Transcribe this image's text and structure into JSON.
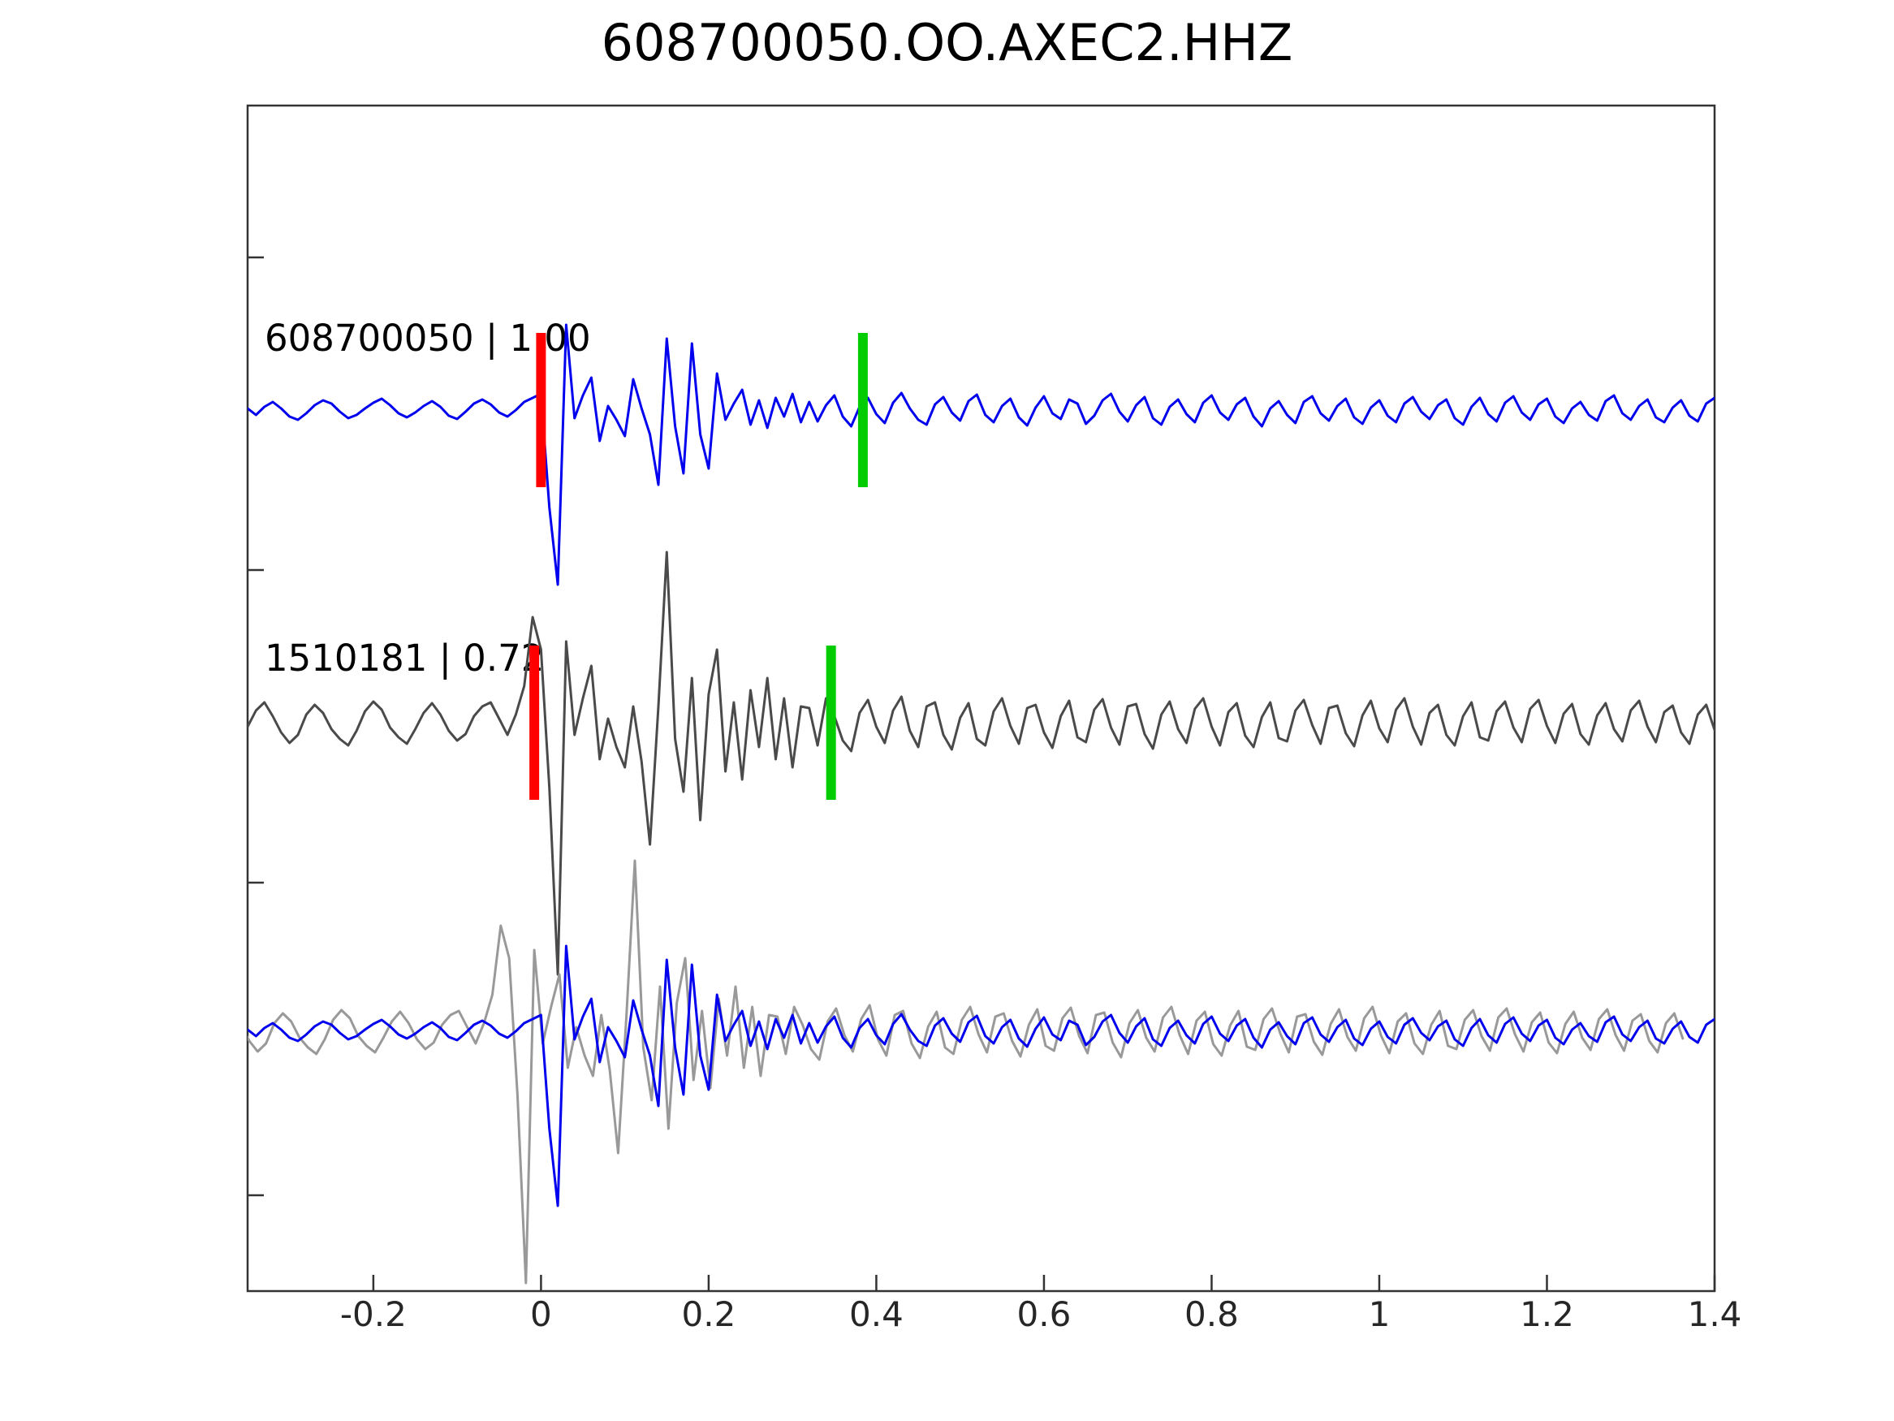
{
  "figure": {
    "title": "608700050.OO.AXEC2.HHZ",
    "background_color": "#ffffff",
    "spine_color": "#333333",
    "text_color": "#262626"
  },
  "chart_data": {
    "type": "line",
    "title": "608700050.OO.AXEC2.HHZ",
    "xlabel": "",
    "ylabel": "",
    "xlim": [
      -0.35,
      1.4
    ],
    "x_ticks": [
      -0.2,
      0,
      0.2,
      0.4,
      0.6,
      0.8,
      1,
      1.2,
      1.4
    ],
    "x_tick_labels": [
      "-0.2",
      "0",
      "0.2",
      "0.4",
      "0.6",
      "0.8",
      "1",
      "1.2",
      "1.4"
    ],
    "grid": false,
    "legend_position": "none",
    "x_start": -0.35,
    "dx": 0.01,
    "amplitude_units": "arbitrary normalized amplitude (source-pixel deviation)",
    "colors": {
      "pick": "#ff0000",
      "window": "#00cc00"
    },
    "traces": [
      {
        "id": "master",
        "label": "608700050 | 1.00",
        "color": "#0000ee",
        "row": 0,
        "shift_s": 0,
        "y": [
          2,
          -6,
          4,
          10,
          2,
          -8,
          -12,
          -4,
          6,
          12,
          8,
          -2,
          -10,
          -6,
          2,
          9,
          14,
          6,
          -4,
          -9,
          -3,
          5,
          11,
          4,
          -7,
          -11,
          -2,
          8,
          13,
          7,
          -3,
          -8,
          0,
          10,
          15,
          20,
          -120,
          -215,
          105,
          -10,
          18,
          40,
          -38,
          5,
          -12,
          -32,
          38,
          2,
          -30,
          -92,
          88,
          -20,
          -78,
          82,
          -30,
          -72,
          45,
          -12,
          8,
          25,
          -18,
          12,
          -22,
          15,
          -8,
          20,
          -15,
          10,
          -14,
          6,
          18,
          -8,
          -20,
          4,
          15,
          -5,
          -16,
          9,
          21,
          2,
          -12,
          -18,
          7,
          16,
          -3,
          -13,
          11,
          19,
          -6,
          -15,
          5,
          14,
          -9,
          -19,
          3,
          17,
          -4,
          -11,
          13,
          8,
          -17,
          -7,
          12,
          20,
          -2,
          -14,
          6,
          16,
          -10,
          -18,
          4,
          13,
          -5,
          -15,
          9,
          18,
          -3,
          -12,
          7,
          15,
          -8,
          -20,
          2,
          11,
          -6,
          -16,
          10,
          17,
          -4,
          -13,
          5,
          14,
          -9,
          -17,
          3,
          12,
          -7,
          -15,
          8,
          16,
          -2,
          -11,
          6,
          13,
          -10,
          -18,
          4,
          15,
          -5,
          -14,
          9,
          17,
          -3,
          -12,
          7,
          14,
          -8,
          -16,
          2,
          10,
          -6,
          -13,
          11,
          18,
          -4,
          -12,
          5,
          13,
          -9,
          -15,
          3,
          12,
          -7,
          -14,
          8,
          15
        ]
      },
      {
        "id": "match",
        "label": "1510181 | 0.72",
        "color": "#4a4a4a",
        "row": 1,
        "shift_s": 0,
        "y": [
          -5,
          15,
          25,
          8,
          -12,
          -25,
          -15,
          10,
          22,
          12,
          -8,
          -20,
          -28,
          -10,
          14,
          26,
          16,
          -6,
          -18,
          -26,
          -8,
          12,
          24,
          10,
          -10,
          -22,
          -14,
          8,
          20,
          25,
          5,
          -15,
          10,
          45,
          130,
          90,
          -80,
          -310,
          100,
          -15,
          30,
          70,
          -45,
          5,
          -30,
          -55,
          20,
          -48,
          -150,
          20,
          210,
          -20,
          -85,
          55,
          -120,
          35,
          90,
          -60,
          25,
          -70,
          40,
          -30,
          55,
          -45,
          30,
          -55,
          20,
          18,
          -28,
          30,
          8,
          -22,
          -35,
          12,
          28,
          -5,
          -25,
          15,
          32,
          -10,
          -30,
          20,
          25,
          -15,
          -33,
          6,
          24,
          -20,
          -28,
          14,
          30,
          -4,
          -26,
          18,
          22,
          -12,
          -31,
          8,
          27,
          -18,
          -24,
          16,
          29,
          -6,
          -27,
          20,
          23,
          -14,
          -32,
          10,
          26,
          -8,
          -25,
          17,
          30,
          -5,
          -28,
          13,
          24,
          -16,
          -30,
          7,
          25,
          -19,
          -23,
          15,
          28,
          -3,
          -26,
          18,
          21,
          -13,
          -29,
          9,
          27,
          -7,
          -24,
          16,
          30,
          -5,
          -27,
          12,
          22,
          -15,
          -28,
          8,
          25,
          -18,
          -22,
          14,
          26,
          -6,
          -24,
          17,
          28,
          -4,
          -25,
          11,
          23,
          -14,
          -27,
          9,
          24,
          -8,
          -23,
          15,
          27,
          -5,
          -24,
          13,
          21,
          -12,
          -26,
          10,
          22,
          -9
        ]
      },
      {
        "id": "overlay-match",
        "label": "",
        "color": "#999999",
        "row": 2,
        "ref": "match",
        "shift_s": -0.038
      },
      {
        "id": "overlay-master",
        "label": "",
        "color": "#0000ee",
        "row": 2,
        "ref": "master",
        "shift_s": 0
      }
    ],
    "markers": [
      {
        "row": 0,
        "t": 0.0,
        "color_key": "pick"
      },
      {
        "row": 0,
        "t": 0.384,
        "color_key": "window"
      },
      {
        "row": 1,
        "t": -0.008,
        "color_key": "pick"
      },
      {
        "row": 1,
        "t": 0.346,
        "color_key": "window"
      }
    ]
  }
}
